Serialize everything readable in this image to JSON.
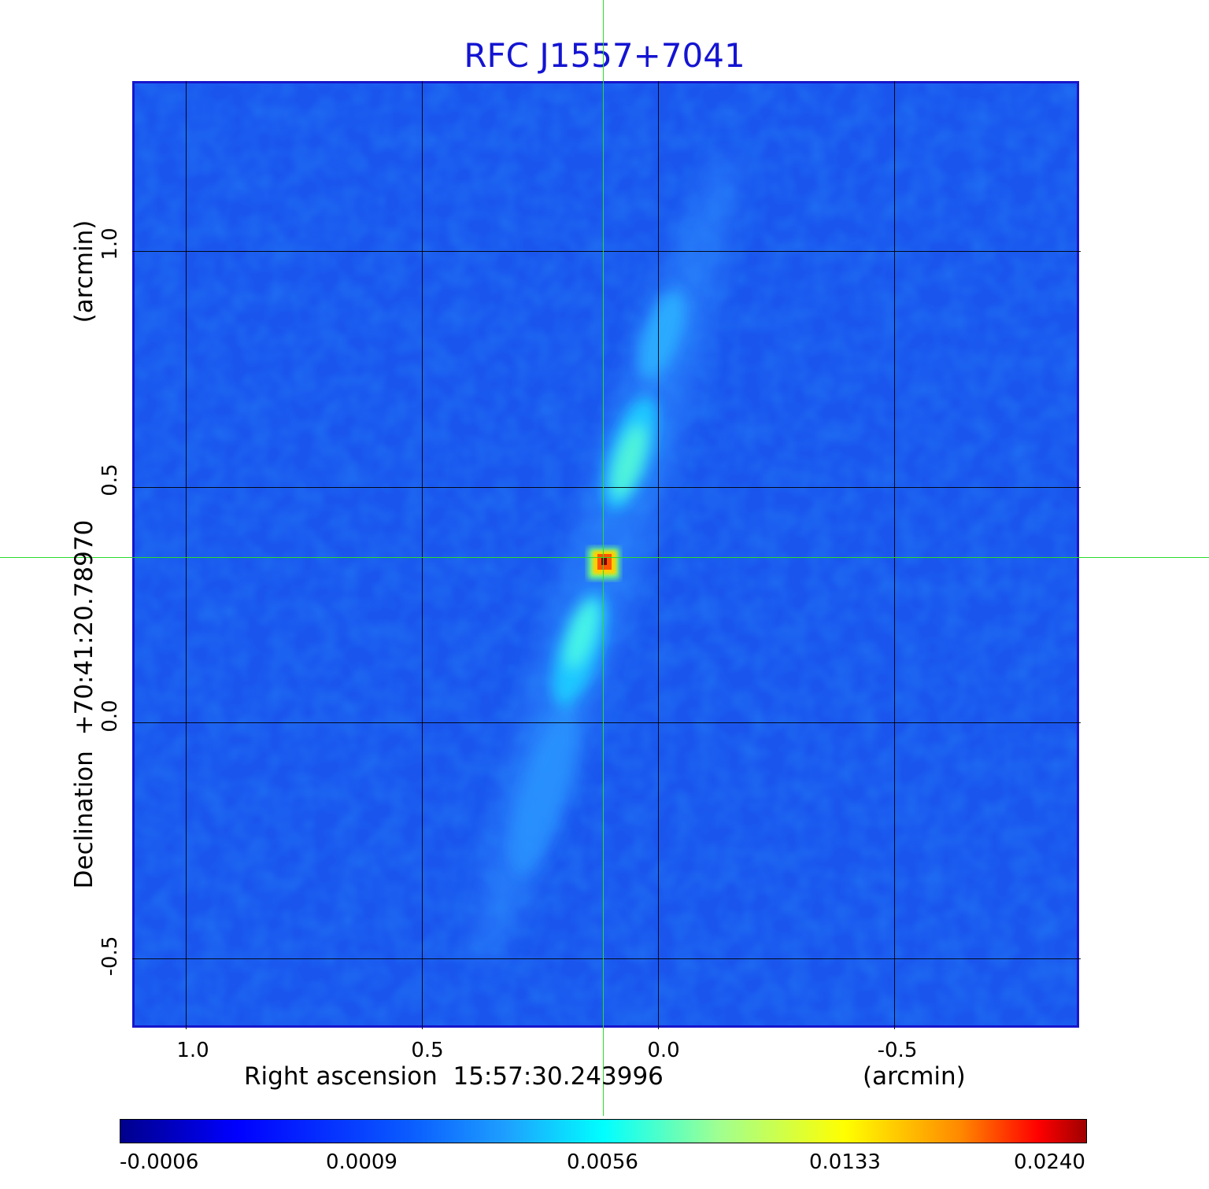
{
  "title": "RFC J1557+7041",
  "axes": {
    "x": {
      "label": "Right ascension  15:57:30.243996",
      "unit": "(arcmin)",
      "ticks": [
        "1.0",
        "0.5",
        "0.0",
        "-0.5"
      ]
    },
    "y": {
      "label": "Declination  +70:41:20.78970",
      "unit": "(arcmin)",
      "ticks": [
        "1.0",
        "0.5",
        "0.0",
        "-0.5"
      ]
    }
  },
  "colorbar": {
    "ticks": [
      "-0.0006",
      "0.0009",
      "0.0056",
      "0.0133",
      "0.0240"
    ],
    "colormap": "jet"
  },
  "colors": {
    "title": "#1414d2",
    "frame": "#1616cc",
    "crosshair": "#2bdc2b",
    "grid": "#000000"
  }
}
